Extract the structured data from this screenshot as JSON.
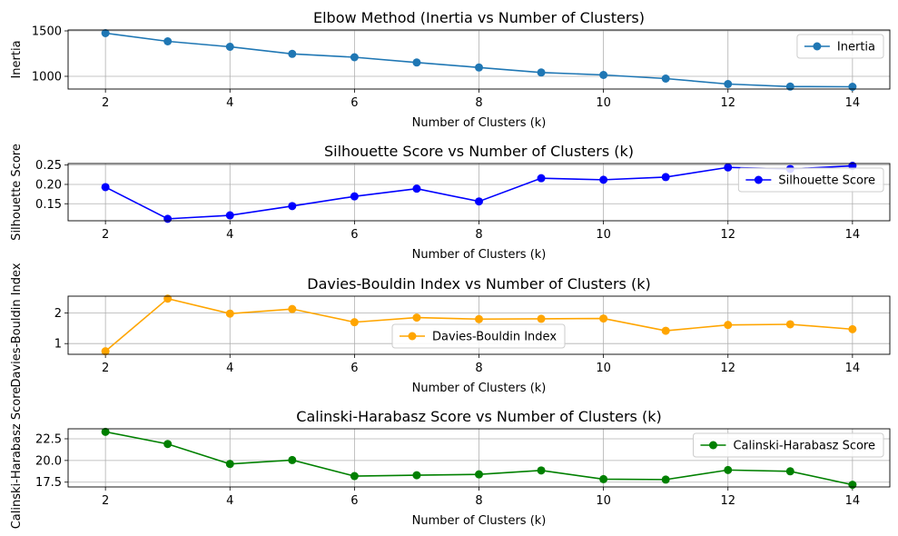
{
  "chart_data": [
    {
      "type": "line",
      "title": "Elbow Method (Inertia vs Number of Clusters)",
      "xlabel": "Number of Clusters (k)",
      "ylabel": "Inertia",
      "xlim": [
        1.4,
        14.6
      ],
      "ylim": [
        860,
        1510
      ],
      "xticks": [
        2,
        4,
        6,
        8,
        10,
        12,
        14
      ],
      "yticks": [
        1000,
        1500
      ],
      "ytick_labels": [
        "1000",
        "1500"
      ],
      "grid": true,
      "legend_position": "right",
      "series": [
        {
          "name": "Inertia",
          "color": "#1f77b4",
          "x": [
            2,
            3,
            4,
            5,
            6,
            7,
            8,
            9,
            10,
            11,
            12,
            13,
            14
          ],
          "y": [
            1475,
            1385,
            1325,
            1247,
            1210,
            1152,
            1097,
            1042,
            1015,
            975,
            915,
            887,
            885
          ]
        }
      ]
    },
    {
      "type": "line",
      "title": "Silhouette Score vs Number of Clusters (k)",
      "xlabel": "Number of Clusters (k)",
      "ylabel": "Silhouette Score",
      "xlim": [
        1.4,
        14.6
      ],
      "ylim": [
        0.106,
        0.254
      ],
      "xticks": [
        2,
        4,
        6,
        8,
        10,
        12,
        14
      ],
      "yticks": [
        0.15,
        0.2,
        0.25
      ],
      "ytick_labels": [
        "0.15",
        "0.20",
        "0.25"
      ],
      "grid": true,
      "legend_position": "right",
      "series": [
        {
          "name": "Silhouette Score",
          "color": "#0000ff",
          "x": [
            2,
            3,
            4,
            5,
            6,
            7,
            8,
            9,
            10,
            11,
            12,
            13,
            14
          ],
          "y": [
            0.193,
            0.111,
            0.12,
            0.144,
            0.169,
            0.189,
            0.156,
            0.216,
            0.212,
            0.219,
            0.244,
            0.24,
            0.248
          ]
        }
      ]
    },
    {
      "type": "line",
      "title": "Davies-Bouldin Index vs Number of Clusters (k)",
      "xlabel": "Number of Clusters (k)",
      "ylabel": "Davies-Bouldin Index",
      "xlim": [
        1.4,
        14.6
      ],
      "ylim": [
        0.65,
        2.55
      ],
      "xticks": [
        2,
        4,
        6,
        8,
        10,
        12,
        14
      ],
      "yticks": [
        1,
        2
      ],
      "ytick_labels": [
        "1",
        "2"
      ],
      "grid": true,
      "legend_position": "lower center",
      "series": [
        {
          "name": "Davies-Bouldin Index",
          "color": "#ffa500",
          "x": [
            2,
            3,
            4,
            5,
            6,
            7,
            8,
            9,
            10,
            11,
            12,
            13,
            14
          ],
          "y": [
            0.75,
            2.47,
            1.98,
            2.13,
            1.7,
            1.85,
            1.8,
            1.81,
            1.82,
            1.42,
            1.61,
            1.63,
            1.47
          ]
        }
      ]
    },
    {
      "type": "line",
      "title": "Calinski-Harabasz Score vs Number of Clusters (k)",
      "xlabel": "Number of Clusters (k)",
      "ylabel": "Calinski-Harabasz Score",
      "xlim": [
        1.4,
        14.6
      ],
      "ylim": [
        16.95,
        23.65
      ],
      "xticks": [
        2,
        4,
        6,
        8,
        10,
        12,
        14
      ],
      "yticks": [
        17.5,
        20.0,
        22.5
      ],
      "ytick_labels": [
        "17.5",
        "20.0",
        "22.5"
      ],
      "grid": true,
      "legend_position": "upper right",
      "series": [
        {
          "name": "Calinski-Harabasz Score",
          "color": "#008000",
          "x": [
            2,
            3,
            4,
            5,
            6,
            7,
            8,
            9,
            10,
            11,
            12,
            13,
            14
          ],
          "y": [
            23.3,
            21.9,
            19.6,
            20.05,
            18.2,
            18.3,
            18.4,
            18.85,
            17.85,
            17.8,
            18.9,
            18.75,
            17.2
          ]
        }
      ]
    }
  ]
}
